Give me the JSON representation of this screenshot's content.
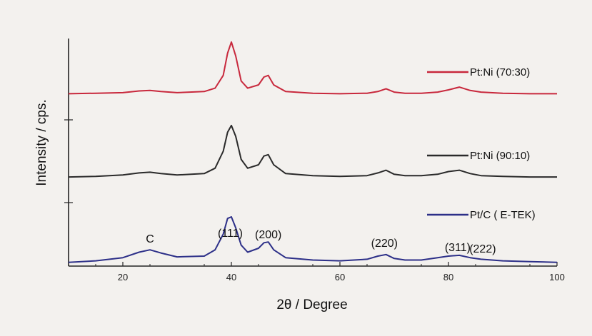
{
  "chart_data": {
    "type": "line",
    "xlabel": "2θ / Degree",
    "ylabel": "Intensity / cps.",
    "xlim": [
      10,
      100
    ],
    "xticks": [
      20,
      40,
      60,
      80,
      100
    ],
    "grid": false,
    "legend_placement": "right of each curve",
    "series": [
      {
        "name": "Pt:Ni (70:30)",
        "color": "#c8283c",
        "x": [
          10,
          15,
          20,
          23,
          25,
          27,
          30,
          35,
          37,
          38.5,
          39.3,
          40,
          40.8,
          41.8,
          43,
          45,
          46,
          46.8,
          47.8,
          50,
          55,
          60,
          65,
          67,
          68.5,
          70,
          72,
          75,
          78,
          80,
          82,
          84,
          86,
          90,
          95,
          100
        ],
        "y": [
          0.02,
          0.03,
          0.04,
          0.07,
          0.08,
          0.06,
          0.04,
          0.06,
          0.12,
          0.35,
          0.75,
          0.95,
          0.7,
          0.25,
          0.12,
          0.18,
          0.32,
          0.35,
          0.18,
          0.06,
          0.03,
          0.02,
          0.03,
          0.06,
          0.11,
          0.05,
          0.03,
          0.03,
          0.05,
          0.09,
          0.14,
          0.08,
          0.05,
          0.03,
          0.02,
          0.02
        ]
      },
      {
        "name": "Pt:Ni (90:10)",
        "color": "#2a2a2a",
        "x": [
          10,
          15,
          20,
          23,
          25,
          27,
          30,
          35,
          37,
          38.5,
          39.3,
          40,
          40.8,
          41.8,
          43,
          45,
          46,
          46.8,
          47.8,
          50,
          55,
          60,
          65,
          67,
          68.5,
          70,
          72,
          75,
          78,
          80,
          82,
          84,
          86,
          90,
          95,
          100
        ],
        "y": [
          0.02,
          0.03,
          0.05,
          0.08,
          0.09,
          0.07,
          0.05,
          0.07,
          0.15,
          0.4,
          0.68,
          0.78,
          0.62,
          0.28,
          0.15,
          0.2,
          0.33,
          0.35,
          0.2,
          0.07,
          0.04,
          0.03,
          0.04,
          0.08,
          0.12,
          0.06,
          0.04,
          0.04,
          0.06,
          0.1,
          0.12,
          0.07,
          0.04,
          0.03,
          0.02,
          0.02
        ]
      },
      {
        "name": "Pt/C ( E-TEK)",
        "color": "#2c2f88",
        "x": [
          10,
          15,
          20,
          23,
          25,
          27,
          30,
          35,
          37,
          38.5,
          39.3,
          40,
          40.8,
          41.8,
          43,
          45,
          46,
          46.8,
          47.8,
          50,
          55,
          60,
          65,
          67,
          68.5,
          70,
          72,
          75,
          78,
          80,
          82,
          84,
          86,
          90,
          95,
          100
        ],
        "y": [
          0.02,
          0.04,
          0.08,
          0.15,
          0.18,
          0.14,
          0.09,
          0.1,
          0.18,
          0.38,
          0.58,
          0.6,
          0.46,
          0.24,
          0.15,
          0.2,
          0.27,
          0.28,
          0.18,
          0.08,
          0.05,
          0.04,
          0.06,
          0.1,
          0.12,
          0.07,
          0.05,
          0.05,
          0.08,
          0.1,
          0.11,
          0.08,
          0.06,
          0.04,
          0.03,
          0.02
        ]
      }
    ],
    "annotations": [
      {
        "text": "C",
        "x": 25
      },
      {
        "text": "(111)",
        "x": 39.8
      },
      {
        "text": "(200)",
        "x": 46.8
      },
      {
        "text": "(220)",
        "x": 68.2
      },
      {
        "text": "(311)",
        "x": 81.7
      },
      {
        "text": "(222)",
        "x": 86.3
      }
    ]
  }
}
